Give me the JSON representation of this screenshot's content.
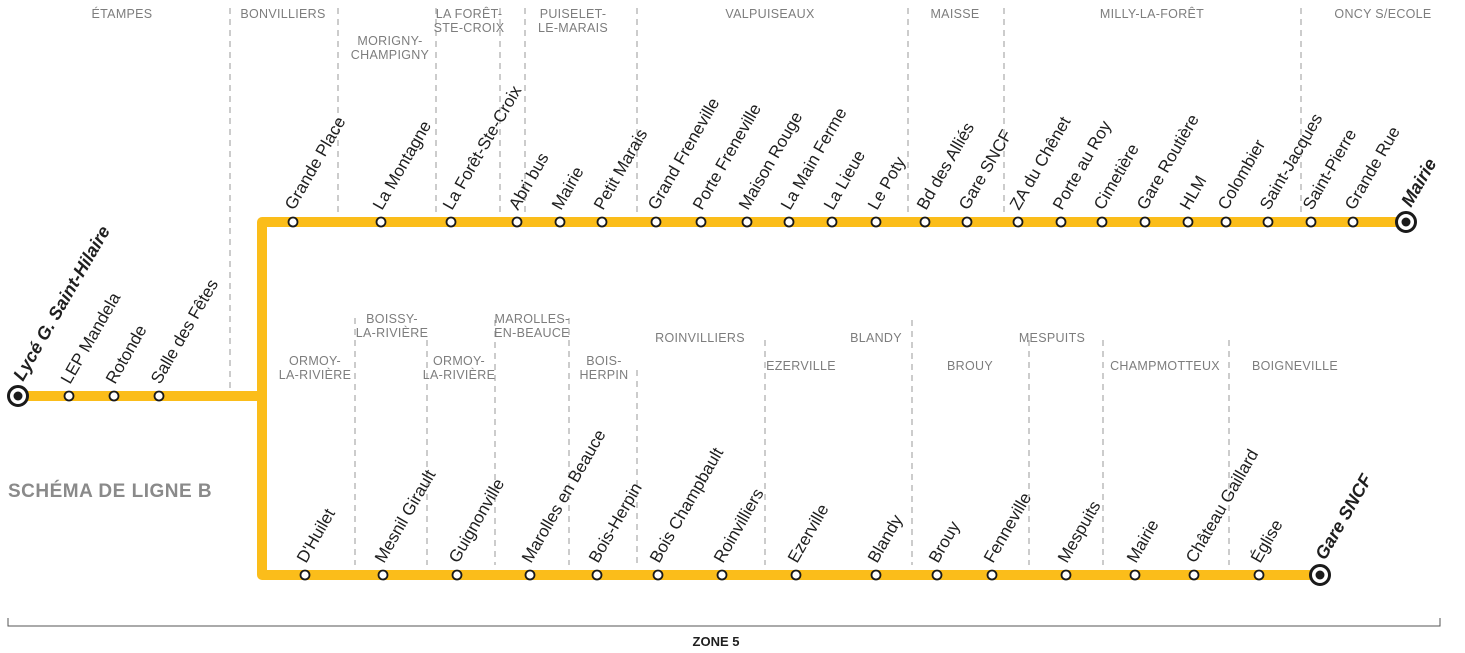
{
  "title": "SCHÉMA DE LIGNE B",
  "zone_label": "ZONE 5",
  "colors": {
    "route": "#fbbd1a",
    "text": "#1f1f1f",
    "commune": "#7d7d7d"
  },
  "start_stops": [
    "Lycé G. Saint-Hilaire",
    "LEP Mandela",
    "Rotonde",
    "Salle des Fêtes"
  ],
  "upper_branch": {
    "terminus": "Mairie",
    "communes": [
      [
        "ÉTAMPES"
      ],
      [
        "BONVILLIERS"
      ],
      [
        "MORIGNY-",
        "CHAMPIGNY"
      ],
      [
        "LA FORÊT-",
        "STE-CROIX"
      ],
      [
        "PUISELET-",
        "LE-MARAIS"
      ],
      [
        "VALPUISEAUX"
      ],
      [
        "MAISSE"
      ],
      [
        "MILLY-LA-FORÊT"
      ],
      [
        "ONCY S/ECOLE"
      ]
    ],
    "stops": [
      "Grande Place",
      "La Montagne",
      "La Forêt-Ste-Croix",
      "Abri bus",
      "Mairie",
      "Petit Marais",
      "Grand Freneville",
      "Porte Freneville",
      "Maison Rouge",
      "La Main Ferme",
      "La Lieue",
      "Le Poty",
      "Bd des Alliés",
      "Gare SNCF",
      "ZA du Chênet",
      "Porte au Roy",
      "Cimetière",
      "Gare Routière",
      "HLM",
      "Colombier",
      "Saint-Jacques",
      "Saint-Pierre",
      "Grande Rue",
      "Mairie"
    ]
  },
  "lower_branch": {
    "terminus": "Gare SNCF",
    "communes": [
      [
        "ORMOY-",
        "LA-RIVIÈRE"
      ],
      [
        "BOISSY-",
        "LA-RIVIÈRE"
      ],
      [
        "ORMOY-",
        "LA-RIVIÈRE"
      ],
      [
        "MAROLLES-",
        "EN-BEAUCE"
      ],
      [
        "BOIS-",
        "HERPIN"
      ],
      [
        "ROINVILLIERS"
      ],
      [
        "EZERVILLE"
      ],
      [
        "BLANDY"
      ],
      [
        "BROUY"
      ],
      [
        "MESPUITS"
      ],
      [
        "CHAMPMOTTEUX"
      ],
      [
        "BOIGNEVILLE"
      ]
    ],
    "stops": [
      "D'Huilet",
      "Mesnil Girault",
      "Guignonville",
      "Marolles en Beauce",
      "Bois-Herpin",
      "Bois Champbault",
      "Roinvilliers",
      "Ezerville",
      "Blandy",
      "Brouy",
      "Fenneville",
      "Mespuits",
      "Mairie",
      "Château Gaillard",
      "Église",
      "Gare SNCF"
    ]
  }
}
